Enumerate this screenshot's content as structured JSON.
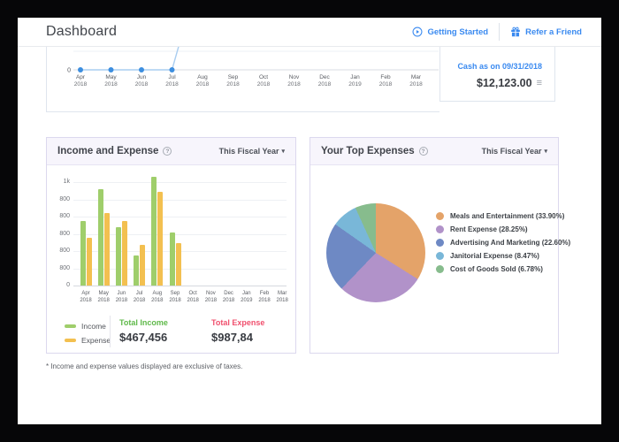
{
  "header": {
    "title": "Dashboard",
    "getting_started": "Getting Started",
    "refer_friend": "Refer a Friend"
  },
  "cash_panel": {
    "label": "Cash as on 09/31/2018",
    "amount": "$12,123.00"
  },
  "income_expense_card": {
    "title": "Income and Expense",
    "help_glyph": "?",
    "period": "This Fiscal Year",
    "legend": [
      {
        "label": "Income",
        "color": "#9fce6b"
      },
      {
        "label": "Expense",
        "color": "#f3c050"
      }
    ],
    "total_income_label": "Total Income",
    "total_income_value": "$467,456",
    "total_expense_label": "Total Expense",
    "total_expense_value": "$987,84"
  },
  "top_expenses_card": {
    "title": "Your Top Expenses",
    "help_glyph": "?",
    "period": "This Fiscal Year"
  },
  "footnote": "* Income and expense values displayed are exclusive of taxes.",
  "chart_data": [
    {
      "id": "cash-flow-line",
      "type": "line",
      "categories": [
        "Apr 2018",
        "May 2018",
        "Jun 2018",
        "Jul 2018",
        "Aug 2018",
        "Sep 2018",
        "Oct 2018",
        "Nov 2018",
        "Dec 2018",
        "Jan 2019",
        "Feb 2018",
        "Mar 2018"
      ],
      "visible_values": [
        0,
        0,
        0,
        0
      ],
      "note": "flat at 0 with point markers Apr-Jul 2018; line rises steeply after Jul 2018 and is cut off at the top of the viewport",
      "ylabel_zero": "0",
      "line_color": "#a9cdf0",
      "point_color": "#3d8edf"
    },
    {
      "id": "income-expense-bars",
      "type": "bar",
      "categories": [
        "Apr 2018",
        "May 2018",
        "Jun 2018",
        "Jul 2018",
        "Aug 2018",
        "Sep 2018",
        "Oct 2018",
        "Nov 2018",
        "Dec 2018",
        "Jan 2019",
        "Feb 2018",
        "Mar 2018"
      ],
      "series": [
        {
          "name": "Income",
          "color": "#9fce6b",
          "values": [
            620,
            930,
            560,
            290,
            1050,
            510,
            0,
            0,
            0,
            0,
            0,
            0
          ]
        },
        {
          "name": "Expense",
          "color": "#f3c050",
          "values": [
            460,
            700,
            620,
            390,
            910,
            410,
            0,
            0,
            0,
            0,
            0,
            0
          ]
        }
      ],
      "y_ticks_bottom_to_top": [
        "0",
        "800",
        "800",
        "800",
        "800",
        "800",
        "1k"
      ],
      "ylim": [
        0,
        1000
      ],
      "grid": true,
      "legend_position": "bottom-left"
    },
    {
      "id": "top-expenses-pie",
      "type": "pie",
      "start_angle_deg": 0,
      "direction": "clockwise",
      "slices": [
        {
          "label": "Meals and Entertainment (33.90%)",
          "value": 33.9,
          "color": "#e4a369"
        },
        {
          "label": "Rent Expense (28.25%)",
          "value": 28.25,
          "color": "#b192c9"
        },
        {
          "label": "Advertising And Marketing (22.60%)",
          "value": 22.6,
          "color": "#6e89c4"
        },
        {
          "label": "Janitorial Expense (8.47%)",
          "value": 8.47,
          "color": "#79b7d8"
        },
        {
          "label": "Cost of Goods Sold (6.78%)",
          "value": 6.78,
          "color": "#87bc8d"
        }
      ],
      "legend_position": "right"
    }
  ]
}
